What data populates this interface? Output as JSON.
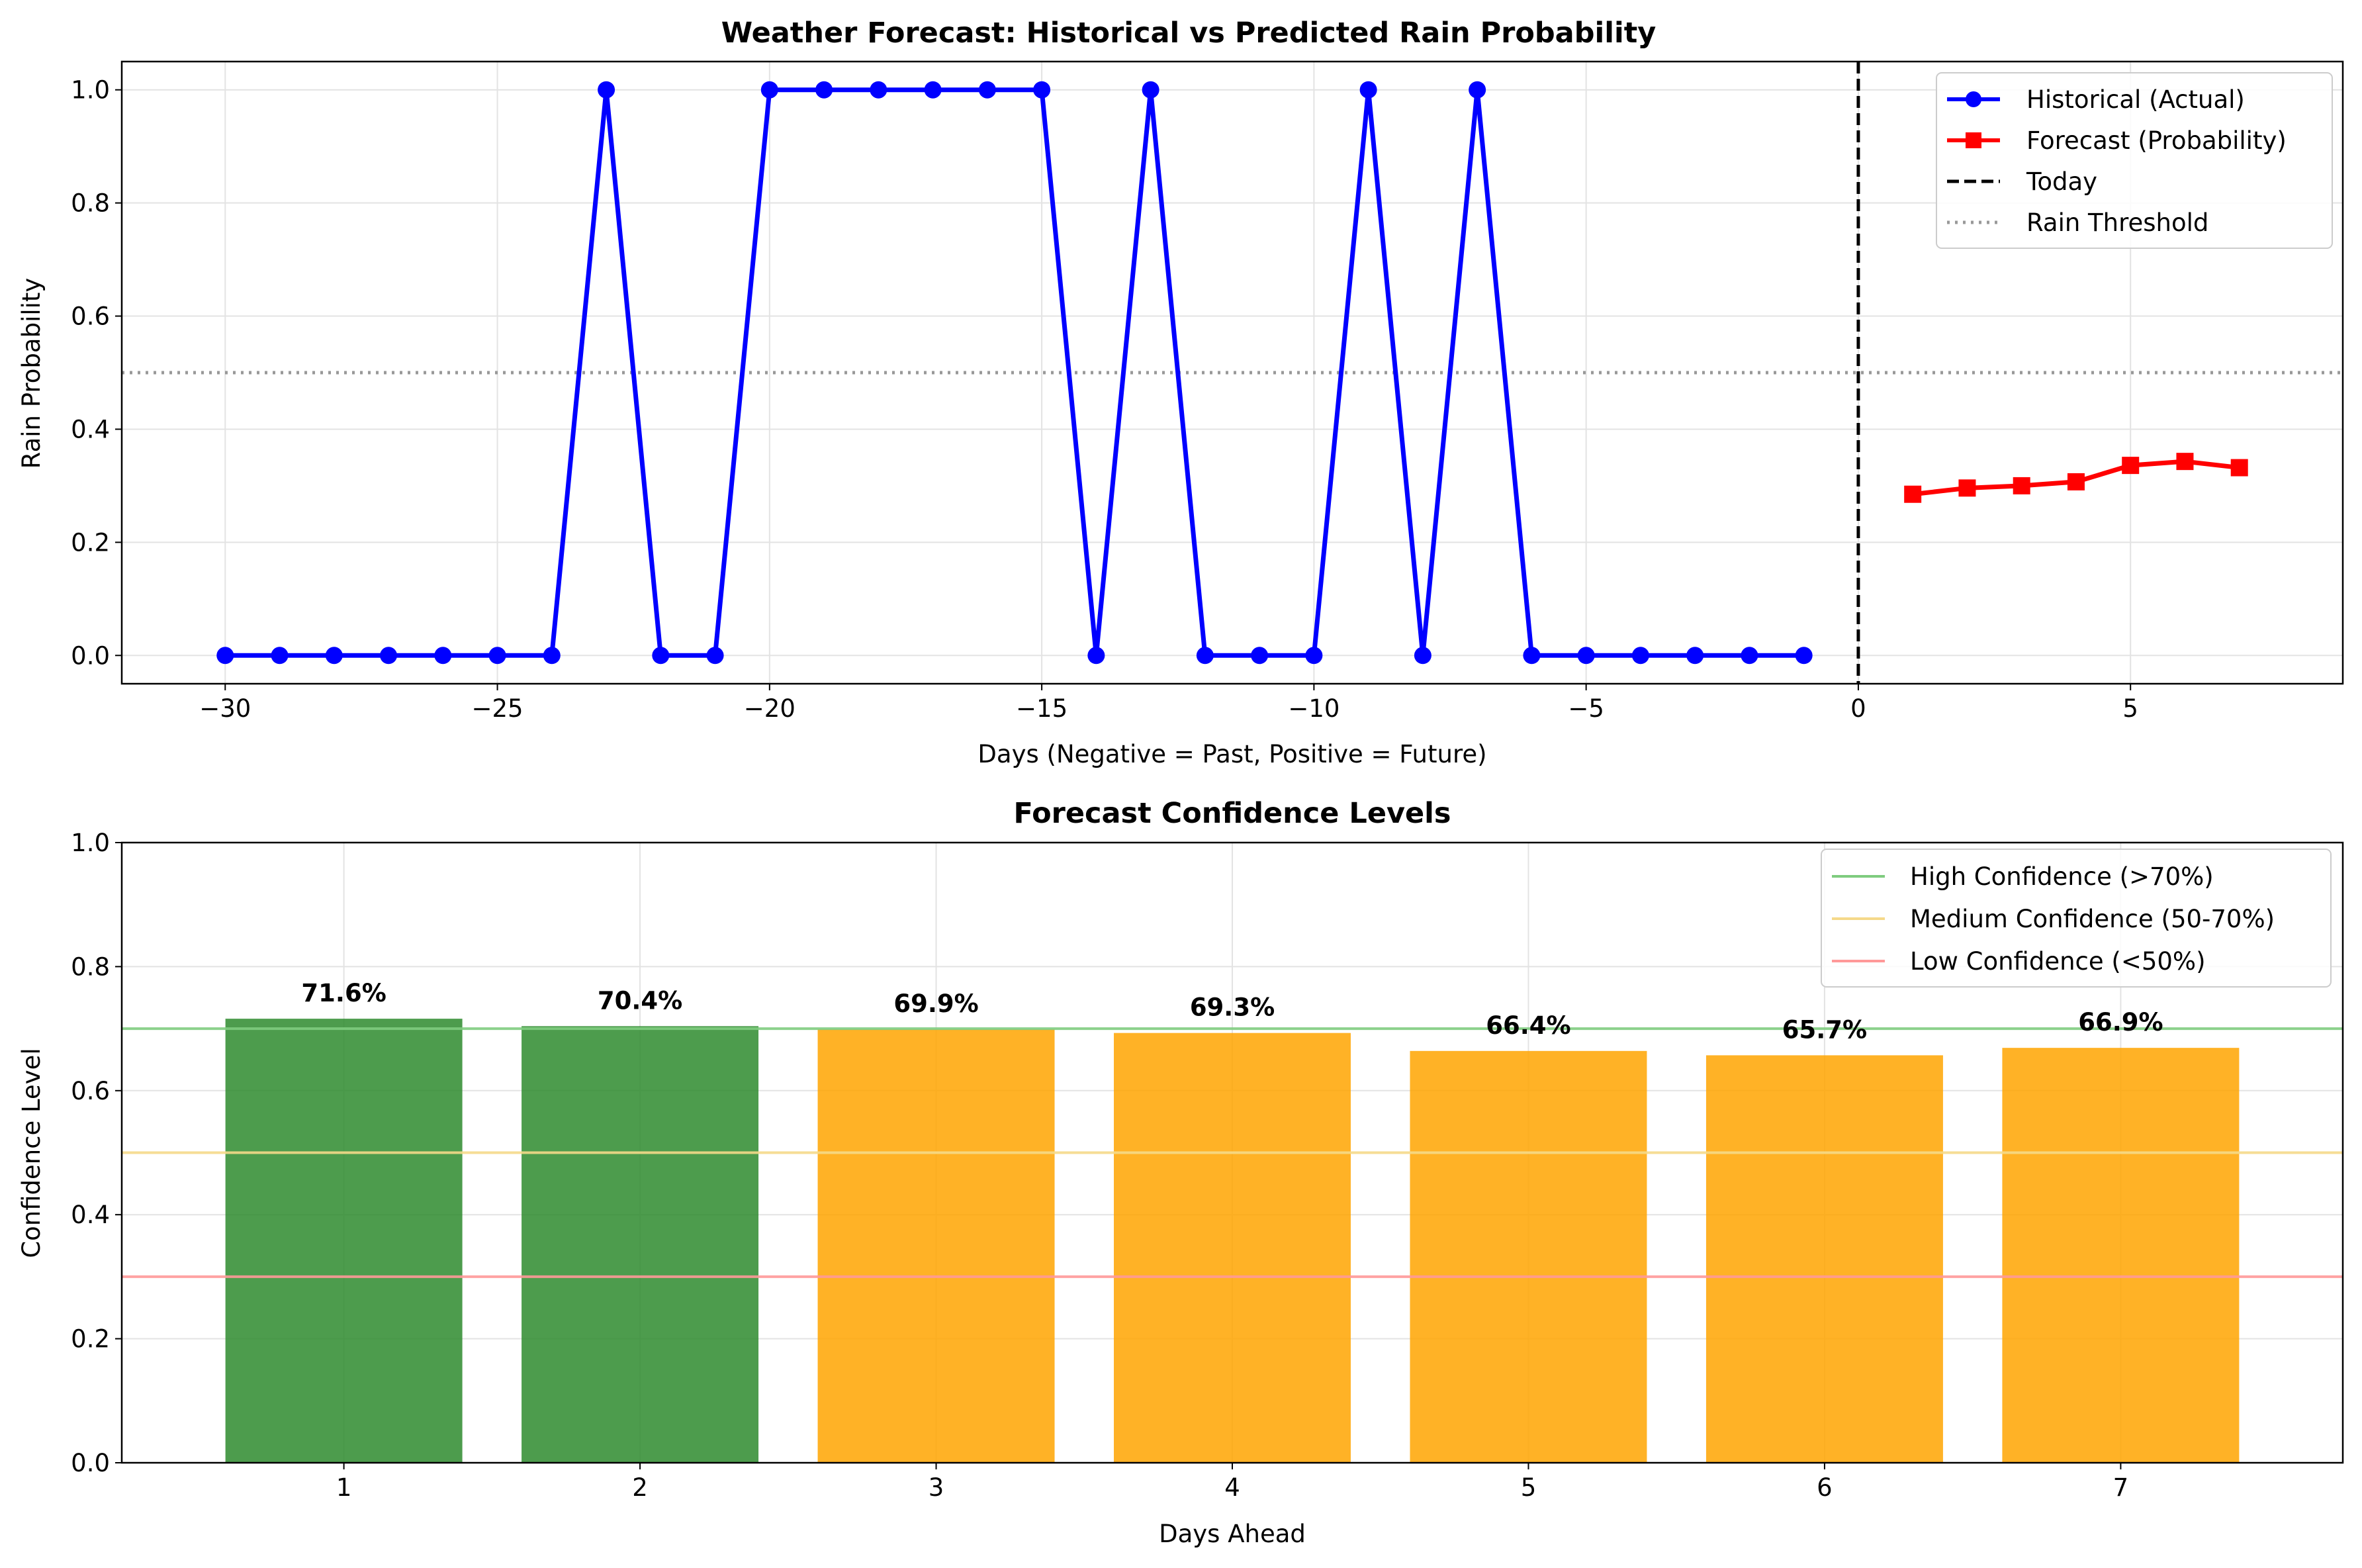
{
  "chart_data": [
    {
      "type": "line",
      "title": "Weather Forecast: Historical vs Predicted Rain Probability",
      "xlabel": "Days (Negative = Past, Positive = Future)",
      "ylabel": "Rain Probability",
      "xlim": [
        -31.9,
        8.9
      ],
      "ylim": [
        -0.05,
        1.05
      ],
      "xticks": [
        -30,
        -25,
        -20,
        -15,
        -10,
        -5,
        0,
        5
      ],
      "xtick_labels": [
        "−30",
        "−25",
        "−20",
        "−15",
        "−10",
        "−5",
        "0",
        "5"
      ],
      "yticks": [
        0.0,
        0.2,
        0.4,
        0.6,
        0.8,
        1.0
      ],
      "ytick_labels": [
        "0.0",
        "0.2",
        "0.4",
        "0.6",
        "0.8",
        "1.0"
      ],
      "grid": true,
      "legend_position": "top-right",
      "series": [
        {
          "name": "Historical (Actual)",
          "color": "#0000ff",
          "marker": "circle",
          "x": [
            -30,
            -29,
            -28,
            -27,
            -26,
            -25,
            -24,
            -23,
            -22,
            -21,
            -20,
            -19,
            -18,
            -17,
            -16,
            -15,
            -14,
            -13,
            -12,
            -11,
            -10,
            -9,
            -8,
            -7,
            -6,
            -5,
            -4,
            -3,
            -2,
            -1
          ],
          "y": [
            0,
            0,
            0,
            0,
            0,
            0,
            0,
            1,
            0,
            0,
            1,
            1,
            1,
            1,
            1,
            1,
            0,
            1,
            0,
            0,
            0,
            1,
            0,
            1,
            0,
            0,
            0,
            0,
            0,
            0
          ]
        },
        {
          "name": "Forecast (Probability)",
          "color": "#ff0000",
          "marker": "square",
          "x": [
            1,
            2,
            3,
            4,
            5,
            6,
            7
          ],
          "y": [
            0.285,
            0.296,
            0.3,
            0.307,
            0.336,
            0.343,
            0.332
          ]
        }
      ],
      "reference_lines": [
        {
          "name": "Today",
          "orientation": "vertical",
          "value": 0,
          "color": "#000000",
          "style": "dashed"
        },
        {
          "name": "Rain Threshold",
          "orientation": "horizontal",
          "value": 0.5,
          "color": "#999999",
          "style": "dotted"
        }
      ]
    },
    {
      "type": "bar",
      "title": "Forecast Confidence Levels",
      "xlabel": "Days Ahead",
      "ylabel": "Confidence Level",
      "xlim": [
        0.25,
        7.75
      ],
      "ylim": [
        0,
        1.0
      ],
      "yticks": [
        0.0,
        0.2,
        0.4,
        0.6,
        0.8,
        1.0
      ],
      "ytick_labels": [
        "0.0",
        "0.2",
        "0.4",
        "0.6",
        "0.8",
        "1.0"
      ],
      "grid": true,
      "legend_position": "top-right",
      "categories": [
        "1",
        "2",
        "3",
        "4",
        "5",
        "6",
        "7"
      ],
      "values": [
        0.716,
        0.704,
        0.699,
        0.693,
        0.664,
        0.657,
        0.669
      ],
      "value_labels": [
        "71.6%",
        "70.4%",
        "69.9%",
        "69.3%",
        "66.4%",
        "65.7%",
        "66.9%"
      ],
      "bar_colors": [
        "#2e8b2e",
        "#2e8b2e",
        "#ffa500",
        "#ffa500",
        "#ffa500",
        "#ffa500",
        "#ffa500"
      ],
      "reference_lines": [
        {
          "name": "High Confidence (>70%)",
          "orientation": "horizontal",
          "value": 0.7,
          "color": "#7fcc7f"
        },
        {
          "name": "Medium Confidence (50-70%)",
          "orientation": "horizontal",
          "value": 0.5,
          "color": "#f5d98a"
        },
        {
          "name": "Low Confidence (<50%)",
          "orientation": "horizontal",
          "value": 0.3,
          "color": "#ff9999"
        }
      ]
    }
  ]
}
